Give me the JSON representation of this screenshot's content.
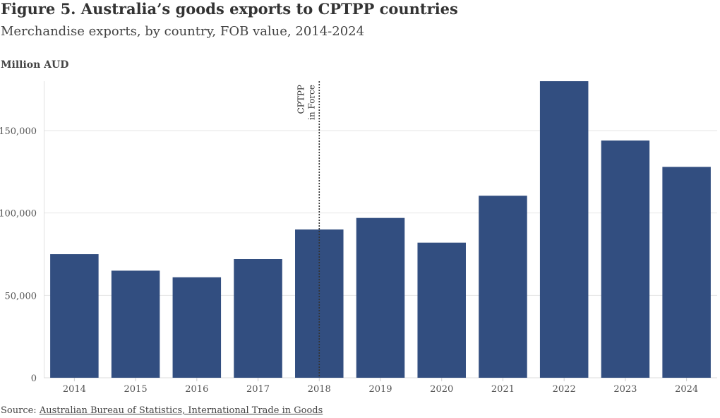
{
  "header": {
    "title": "Figure 5. Australia’s goods exports to CPTPP countries",
    "subtitle": "Merchandise exports, by country, FOB value, 2014-2024"
  },
  "footer": {
    "source_prefix": "Source: ",
    "source_link": "Australian Bureau of Statistics, International Trade in Goods"
  },
  "chart_data": {
    "type": "bar",
    "title": "Figure 5. Australia’s goods exports to CPTPP countries",
    "subtitle": "Merchandise exports, by country, FOB value, 2014-2024",
    "ylabel": "Million AUD",
    "xlabel": "",
    "categories": [
      "2014",
      "2015",
      "2016",
      "2017",
      "2018",
      "2019",
      "2020",
      "2021",
      "2022",
      "2023",
      "2024"
    ],
    "values": [
      75000,
      65000,
      61000,
      72000,
      90000,
      97000,
      82000,
      110500,
      180000,
      144000,
      128000
    ],
    "ylim": [
      0,
      180000
    ],
    "yticks": [
      0,
      50000,
      100000,
      150000
    ],
    "ytick_labels": [
      "0",
      "50,000",
      "100,000",
      "150,000"
    ],
    "grid": true,
    "bar_color": "#2e4a7d",
    "annotation": {
      "category": "2018",
      "lines": [
        "CPTPP",
        "in Force"
      ]
    }
  }
}
